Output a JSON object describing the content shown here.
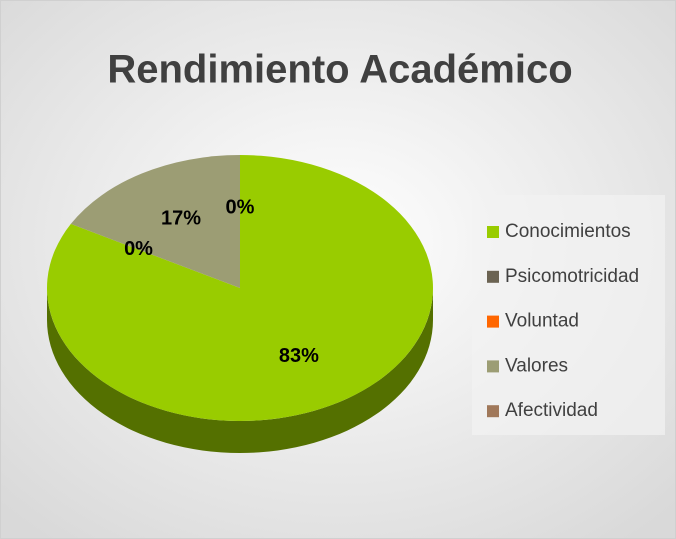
{
  "chart_data": {
    "type": "pie",
    "title": "Rendimiento Académico",
    "categories": [
      "Conocimientos",
      "Psicomotricidad",
      "Voluntad",
      "Valores",
      "Afectividad"
    ],
    "values": [
      83,
      0,
      0,
      17,
      0
    ],
    "value_labels": [
      "83%",
      "0%",
      null,
      "17%",
      "0%"
    ],
    "colors": [
      "#99cc00",
      "#6b6352",
      "#ff6600",
      "#9c9d74",
      "#a0785a"
    ],
    "legend": "right"
  }
}
